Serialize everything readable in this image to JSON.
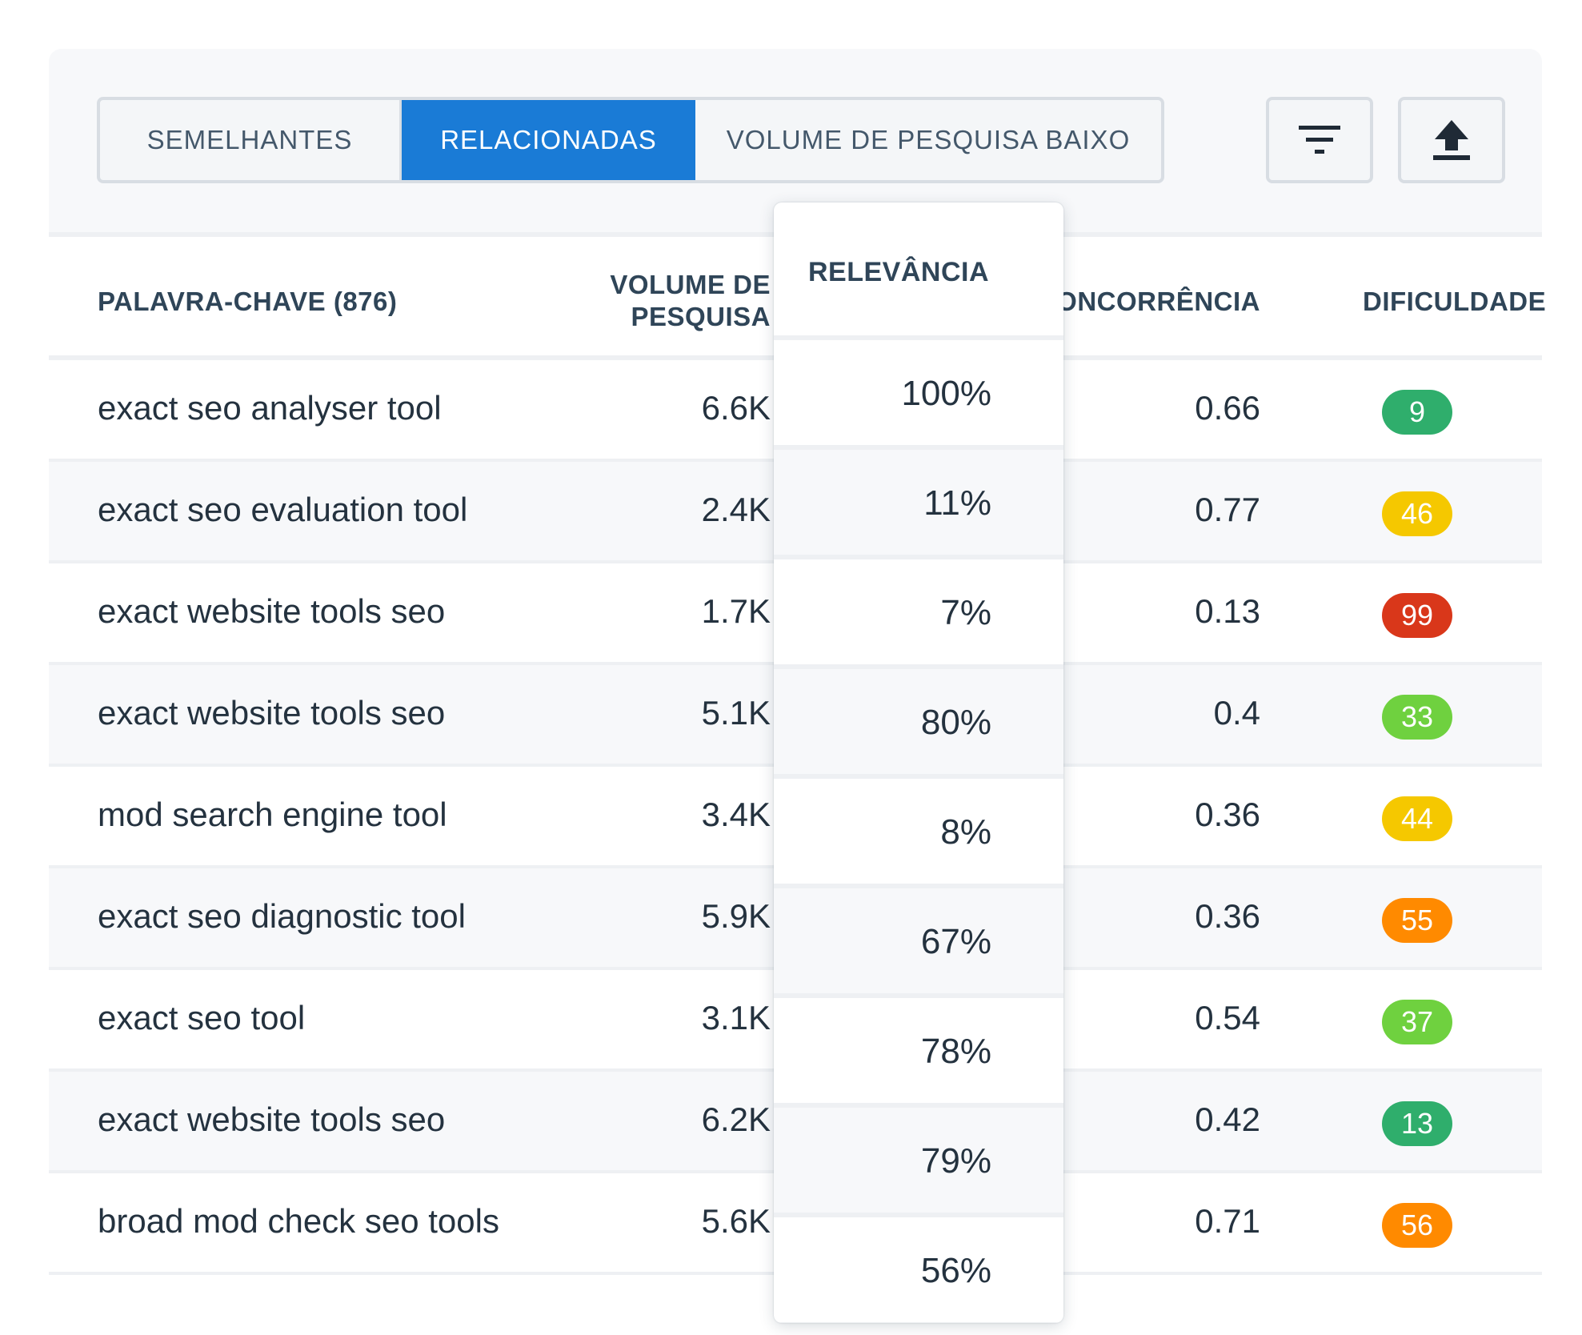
{
  "tabs": [
    {
      "label": "SEMELHANTES",
      "active": false
    },
    {
      "label": "RELACIONADAS",
      "active": true
    },
    {
      "label": "VOLUME DE PESQUISA BAIXO",
      "active": false
    }
  ],
  "toolbar": {
    "filter_icon": "filter-icon",
    "export_icon": "upload-icon"
  },
  "table": {
    "headers": {
      "keyword": "PALAVRA-CHAVE (876)",
      "volume_line1": "VOLUME DE",
      "volume_line2": "PESQUISA",
      "relevance": "RELEVÂNCIA",
      "competition": "ONCORRÊNCIA",
      "difficulty": "DIFICULDADE"
    },
    "rows": [
      {
        "keyword": "exact seo analyser tool",
        "volume": "6.6K",
        "relevance": "100%",
        "competition": "0.66",
        "difficulty": "9",
        "difficulty_color": "#2fae6c"
      },
      {
        "keyword": "exact seo evaluation tool",
        "volume": "2.4K",
        "relevance": "11%",
        "competition": "0.77",
        "difficulty": "46",
        "difficulty_color": "#f5c800"
      },
      {
        "keyword": "exact website tools seo",
        "volume": "1.7K",
        "relevance": "7%",
        "competition": "0.13",
        "difficulty": "99",
        "difficulty_color": "#d9371a"
      },
      {
        "keyword": "exact website tools seo",
        "volume": "5.1K",
        "relevance": "80%",
        "competition": "0.4",
        "difficulty": "33",
        "difficulty_color": "#6fd13f"
      },
      {
        "keyword": "mod search engine tool",
        "volume": "3.4K",
        "relevance": "8%",
        "competition": "0.36",
        "difficulty": "44",
        "difficulty_color": "#f5c800"
      },
      {
        "keyword": "exact seo diagnostic tool",
        "volume": "5.9K",
        "relevance": "67%",
        "competition": "0.36",
        "difficulty": "55",
        "difficulty_color": "#ff8a00"
      },
      {
        "keyword": "exact seo tool",
        "volume": "3.1K",
        "relevance": "78%",
        "competition": "0.54",
        "difficulty": "37",
        "difficulty_color": "#6fd13f"
      },
      {
        "keyword": "exact website tools seo",
        "volume": "6.2K",
        "relevance": "79%",
        "competition": "0.42",
        "difficulty": "13",
        "difficulty_color": "#2fae6c"
      },
      {
        "keyword": "broad mod check seo tools",
        "volume": "5.6K",
        "relevance": "56%",
        "competition": "0.71",
        "difficulty": "56",
        "difficulty_color": "#ff8a00"
      }
    ]
  }
}
